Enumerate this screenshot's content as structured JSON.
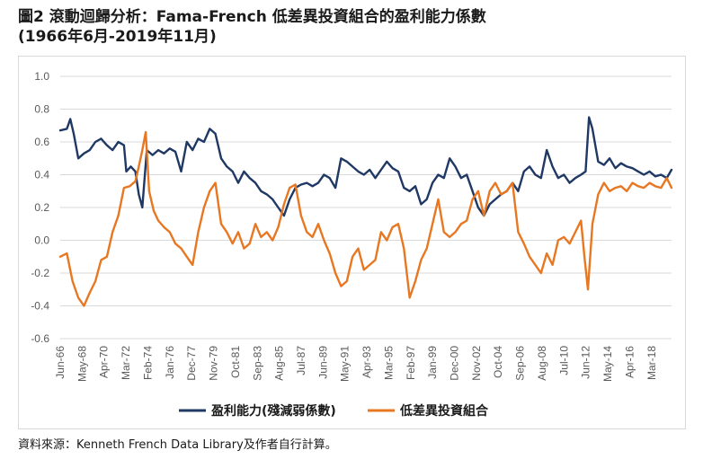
{
  "title": {
    "line1": "圖2 滾動迴歸分析：Fama-French 低差異投資組合的盈利能力係數",
    "line2": "(1966年6月-2019年11月)"
  },
  "source": "資料來源：Kenneth French Data Library及作者自行計算。",
  "chart_data": {
    "type": "line",
    "ylim": [
      -0.6,
      1.0
    ],
    "yticks": [
      "1.0",
      "0.8",
      "0.6",
      "0.4",
      "0.2",
      "0.0",
      "-0.2",
      "-0.4",
      "-0.6"
    ],
    "xlim": [
      1966.42,
      2019.92
    ],
    "xticks": [
      "Jun-66",
      "May-68",
      "Apr-70",
      "Mar-72",
      "Feb-74",
      "Jan-76",
      "Dec-77",
      "Nov-79",
      "Oct-81",
      "Sep-83",
      "Aug-85",
      "Jul-87",
      "Jun-89",
      "May-91",
      "Apr-93",
      "Mar-95",
      "Feb-97",
      "Jan-99",
      "Dec-00",
      "Nov-02",
      "Oct-04",
      "Sep-06",
      "Aug-08",
      "Jul-10",
      "Jun-12",
      "May-14",
      "Apr-16",
      "Mar-18"
    ],
    "grid": true,
    "legend": "bottom",
    "series": [
      {
        "name": "盈利能力(殘減弱係數)",
        "color": "#1f3864",
        "x": [
          1966.42,
          1967.0,
          1967.3,
          1967.6,
          1968.0,
          1968.5,
          1969.0,
          1969.5,
          1970.0,
          1970.5,
          1971.0,
          1971.5,
          1972.0,
          1972.2,
          1972.6,
          1973.0,
          1973.3,
          1973.6,
          1974.0,
          1974.5,
          1975.0,
          1975.5,
          1976.0,
          1976.5,
          1977.0,
          1977.5,
          1978.0,
          1978.5,
          1979.0,
          1979.5,
          1980.0,
          1980.5,
          1981.0,
          1981.5,
          1982.0,
          1982.5,
          1983.0,
          1983.5,
          1984.0,
          1984.5,
          1985.0,
          1985.5,
          1986.0,
          1986.5,
          1987.0,
          1987.5,
          1988.0,
          1988.5,
          1989.0,
          1989.5,
          1990.0,
          1990.5,
          1991.0,
          1991.5,
          1992.0,
          1992.5,
          1993.0,
          1993.5,
          1994.0,
          1994.5,
          1995.0,
          1995.5,
          1996.0,
          1996.5,
          1997.0,
          1997.5,
          1998.0,
          1998.5,
          1999.0,
          1999.5,
          2000.0,
          2000.5,
          2001.0,
          2001.5,
          2002.0,
          2002.5,
          2003.0,
          2003.5,
          2004.0,
          2004.5,
          2005.0,
          2005.5,
          2006.0,
          2006.5,
          2007.0,
          2007.5,
          2008.0,
          2008.5,
          2009.0,
          2009.5,
          2010.0,
          2010.5,
          2011.0,
          2011.5,
          2012.0,
          2012.4,
          2012.7,
          2013.0,
          2013.5,
          2014.0,
          2014.5,
          2015.0,
          2015.5,
          2016.0,
          2016.5,
          2017.0,
          2017.5,
          2018.0,
          2018.5,
          2019.0,
          2019.5,
          2019.92
        ],
        "y": [
          0.67,
          0.68,
          0.74,
          0.65,
          0.5,
          0.53,
          0.55,
          0.6,
          0.62,
          0.58,
          0.55,
          0.6,
          0.58,
          0.42,
          0.45,
          0.42,
          0.28,
          0.2,
          0.55,
          0.52,
          0.55,
          0.53,
          0.56,
          0.54,
          0.42,
          0.6,
          0.55,
          0.62,
          0.6,
          0.68,
          0.65,
          0.5,
          0.45,
          0.42,
          0.35,
          0.42,
          0.38,
          0.35,
          0.3,
          0.28,
          0.25,
          0.2,
          0.15,
          0.25,
          0.32,
          0.34,
          0.35,
          0.33,
          0.35,
          0.4,
          0.38,
          0.32,
          0.5,
          0.48,
          0.45,
          0.42,
          0.4,
          0.43,
          0.38,
          0.43,
          0.48,
          0.44,
          0.42,
          0.32,
          0.3,
          0.33,
          0.22,
          0.25,
          0.35,
          0.4,
          0.38,
          0.5,
          0.45,
          0.38,
          0.4,
          0.3,
          0.2,
          0.15,
          0.22,
          0.25,
          0.28,
          0.3,
          0.35,
          0.3,
          0.42,
          0.45,
          0.4,
          0.38,
          0.55,
          0.45,
          0.38,
          0.4,
          0.35,
          0.38,
          0.4,
          0.42,
          0.75,
          0.68,
          0.48,
          0.46,
          0.5,
          0.44,
          0.47,
          0.45,
          0.44,
          0.42,
          0.4,
          0.42,
          0.39,
          0.4,
          0.38,
          0.43
        ]
      },
      {
        "name": "低差異投資組合",
        "color": "#e87722",
        "x": [
          1966.42,
          1967.0,
          1967.5,
          1968.0,
          1968.5,
          1969.0,
          1969.5,
          1970.0,
          1970.5,
          1971.0,
          1971.5,
          1972.0,
          1972.5,
          1973.0,
          1973.3,
          1973.6,
          1973.9,
          1974.2,
          1974.6,
          1975.0,
          1975.5,
          1976.0,
          1976.5,
          1977.0,
          1977.5,
          1978.0,
          1978.5,
          1979.0,
          1979.5,
          1980.0,
          1980.5,
          1981.0,
          1981.5,
          1982.0,
          1982.5,
          1983.0,
          1983.5,
          1984.0,
          1984.5,
          1985.0,
          1985.5,
          1986.0,
          1986.5,
          1987.0,
          1987.5,
          1988.0,
          1988.5,
          1989.0,
          1989.5,
          1990.0,
          1990.5,
          1991.0,
          1991.5,
          1992.0,
          1992.5,
          1993.0,
          1993.5,
          1994.0,
          1994.5,
          1995.0,
          1995.5,
          1996.0,
          1996.5,
          1997.0,
          1997.5,
          1998.0,
          1998.5,
          1999.0,
          1999.5,
          2000.0,
          2000.5,
          2001.0,
          2001.5,
          2002.0,
          2002.5,
          2003.0,
          2003.5,
          2004.0,
          2004.5,
          2005.0,
          2005.5,
          2006.0,
          2006.5,
          2007.0,
          2007.5,
          2008.0,
          2008.5,
          2009.0,
          2009.5,
          2010.0,
          2010.5,
          2011.0,
          2011.5,
          2012.0,
          2012.3,
          2012.6,
          2013.0,
          2013.5,
          2014.0,
          2014.5,
          2015.0,
          2015.5,
          2016.0,
          2016.5,
          2017.0,
          2017.5,
          2018.0,
          2018.5,
          2019.0,
          2019.5,
          2019.92
        ],
        "y": [
          -0.1,
          -0.08,
          -0.25,
          -0.35,
          -0.4,
          -0.32,
          -0.25,
          -0.12,
          -0.1,
          0.05,
          0.15,
          0.32,
          0.33,
          0.36,
          0.45,
          0.55,
          0.66,
          0.3,
          0.18,
          0.12,
          0.08,
          0.05,
          -0.02,
          -0.05,
          -0.1,
          -0.15,
          0.05,
          0.2,
          0.3,
          0.35,
          0.1,
          0.05,
          -0.02,
          0.05,
          -0.05,
          -0.02,
          0.1,
          0.02,
          0.05,
          0.0,
          0.08,
          0.22,
          0.32,
          0.34,
          0.15,
          0.05,
          0.02,
          0.1,
          0.0,
          -0.08,
          -0.2,
          -0.28,
          -0.25,
          -0.1,
          -0.05,
          -0.18,
          -0.15,
          -0.12,
          0.05,
          0.0,
          0.08,
          0.1,
          -0.05,
          -0.35,
          -0.25,
          -0.12,
          -0.05,
          0.1,
          0.25,
          0.05,
          0.02,
          0.05,
          0.1,
          0.12,
          0.25,
          0.3,
          0.15,
          0.3,
          0.35,
          0.28,
          0.3,
          0.35,
          0.05,
          -0.02,
          -0.1,
          -0.15,
          -0.2,
          -0.08,
          -0.15,
          0.0,
          0.02,
          -0.02,
          0.05,
          0.12,
          -0.1,
          -0.3,
          0.1,
          0.28,
          0.35,
          0.3,
          0.32,
          0.33,
          0.3,
          0.35,
          0.33,
          0.32,
          0.35,
          0.33,
          0.32,
          0.38,
          0.32
        ]
      }
    ]
  }
}
